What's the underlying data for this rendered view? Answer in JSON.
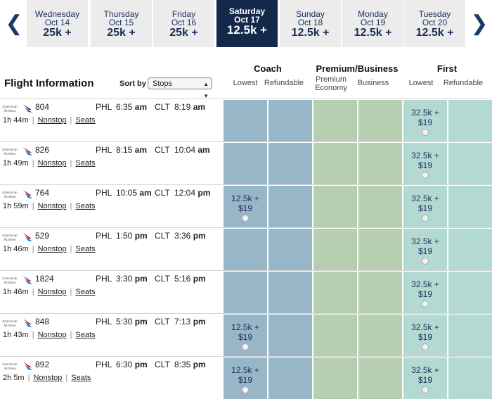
{
  "dates": [
    {
      "dow": "Wednesday",
      "md": "Oct 14",
      "pts": "25k +",
      "selected": false
    },
    {
      "dow": "Thursday",
      "md": "Oct 15",
      "pts": "25k +",
      "selected": false
    },
    {
      "dow": "Friday",
      "md": "Oct 16",
      "pts": "25k +",
      "selected": false
    },
    {
      "dow": "Saturday",
      "md": "Oct 17",
      "pts": "12.5k +",
      "selected": true
    },
    {
      "dow": "Sunday",
      "md": "Oct 18",
      "pts": "12.5k +",
      "selected": false
    },
    {
      "dow": "Monday",
      "md": "Oct 19",
      "pts": "12.5k +",
      "selected": false
    },
    {
      "dow": "Tuesday",
      "md": "Oct 20",
      "pts": "12.5k +",
      "selected": false
    }
  ],
  "nav": {
    "prev": "❮",
    "next": "❯"
  },
  "header": {
    "title": "Flight Information",
    "sort_label": "Sort by",
    "sort_value": "Stops",
    "groups": [
      "Coach",
      "Premium/Business",
      "First"
    ],
    "subcols": [
      "Lowest",
      "Refundable",
      "Premium Economy",
      "Business",
      "Lowest",
      "Refundable"
    ]
  },
  "links": {
    "nonstop": "Nonstop",
    "seats": "Seats"
  },
  "flights": [
    {
      "number": "804",
      "orig": "PHL",
      "dep": "6:35",
      "dep_ampm": "am",
      "dest": "CLT",
      "arr": "8:19",
      "arr_ampm": "am",
      "duration": "1h 44m",
      "coach": null,
      "first": {
        "pts": "32.5k +",
        "fee": "$19"
      }
    },
    {
      "number": "826",
      "orig": "PHL",
      "dep": "8:15",
      "dep_ampm": "am",
      "dest": "CLT",
      "arr": "10:04",
      "arr_ampm": "am",
      "duration": "1h 49m",
      "coach": null,
      "first": {
        "pts": "32.5k +",
        "fee": "$19"
      }
    },
    {
      "number": "764",
      "orig": "PHL",
      "dep": "10:05",
      "dep_ampm": "am",
      "dest": "CLT",
      "arr": "12:04",
      "arr_ampm": "pm",
      "duration": "1h 59m",
      "coach": {
        "pts": "12.5k +",
        "fee": "$19"
      },
      "first": {
        "pts": "32.5k +",
        "fee": "$19"
      }
    },
    {
      "number": "529",
      "orig": "PHL",
      "dep": "1:50",
      "dep_ampm": "pm",
      "dest": "CLT",
      "arr": "3:36",
      "arr_ampm": "pm",
      "duration": "1h 46m",
      "coach": null,
      "first": {
        "pts": "32.5k +",
        "fee": "$19"
      }
    },
    {
      "number": "1824",
      "orig": "PHL",
      "dep": "3:30",
      "dep_ampm": "pm",
      "dest": "CLT",
      "arr": "5:16",
      "arr_ampm": "pm",
      "duration": "1h 46m",
      "coach": null,
      "first": {
        "pts": "32.5k +",
        "fee": "$19"
      }
    },
    {
      "number": "848",
      "orig": "PHL",
      "dep": "5:30",
      "dep_ampm": "pm",
      "dest": "CLT",
      "arr": "7:13",
      "arr_ampm": "pm",
      "duration": "1h 43m",
      "coach": {
        "pts": "12.5k +",
        "fee": "$19"
      },
      "first": {
        "pts": "32.5k +",
        "fee": "$19"
      }
    },
    {
      "number": "892",
      "orig": "PHL",
      "dep": "6:30",
      "dep_ampm": "pm",
      "dest": "CLT",
      "arr": "8:35",
      "arr_ampm": "pm",
      "duration": "2h 5m",
      "coach": {
        "pts": "12.5k +",
        "fee": "$19"
      },
      "first": {
        "pts": "32.5k +",
        "fee": "$19"
      }
    }
  ],
  "airline_logo_text": "American Airlines",
  "colors": {
    "navy": "#13294b",
    "coach": "#97b7c8",
    "premium": "#b5cfb0",
    "first": "#b2dad2"
  }
}
